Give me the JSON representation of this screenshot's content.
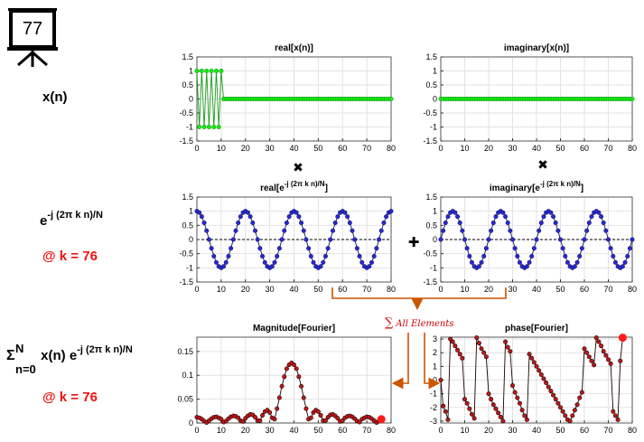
{
  "board": {
    "value": "77",
    "icon": "presentation-board-icon"
  },
  "rows": {
    "signal": {
      "label": "x(n)"
    },
    "kernel": {
      "base": "e",
      "exponent": "-j (2π k n)/N",
      "k_label": "@ k = 76"
    },
    "sum": {
      "sigma": "Σ",
      "upper": "N",
      "lower": "n=0",
      "body": " x(n) e",
      "exponent": "-j (2π k n)/N",
      "k_label": "@ k = 76"
    }
  },
  "operators": {
    "multiply": "✖",
    "add": "✚",
    "sum_label": "All Elements",
    "sum_symbol": "∑"
  },
  "colors": {
    "accent_red": "#ee1111",
    "green": "#1a9a1a",
    "navy": "#10106e",
    "darkred": "#8b0000",
    "orange": "#cc5500"
  },
  "chart_data": [
    {
      "id": "real_x",
      "type": "line",
      "title": "real[x(n)]",
      "x": [
        0,
        1,
        2,
        3,
        4,
        5,
        6,
        7,
        8,
        9,
        10,
        11,
        12,
        13,
        14,
        15,
        16,
        17,
        18,
        19,
        20,
        21,
        22,
        23,
        24,
        25,
        26,
        27,
        28,
        29,
        30,
        31,
        32,
        33,
        34,
        35,
        36,
        37,
        38,
        39,
        40,
        41,
        42,
        43,
        44,
        45,
        46,
        47,
        48,
        49,
        50,
        51,
        52,
        53,
        54,
        55,
        56,
        57,
        58,
        59,
        60,
        61,
        62,
        63,
        64,
        65,
        66,
        67,
        68,
        69,
        70,
        71,
        72,
        73,
        74,
        75,
        76,
        77,
        78,
        79,
        80
      ],
      "values": [
        1,
        -1,
        1,
        -1,
        1,
        -1,
        1,
        -1,
        1,
        -1,
        1,
        0,
        0,
        0,
        0,
        0,
        0,
        0,
        0,
        0,
        0,
        0,
        0,
        0,
        0,
        0,
        0,
        0,
        0,
        0,
        0,
        0,
        0,
        0,
        0,
        0,
        0,
        0,
        0,
        0,
        0,
        0,
        0,
        0,
        0,
        0,
        0,
        0,
        0,
        0,
        0,
        0,
        0,
        0,
        0,
        0,
        0,
        0,
        0,
        0,
        0,
        0,
        0,
        0,
        0,
        0,
        0,
        0,
        0,
        0,
        0,
        0,
        0,
        0,
        0,
        0,
        0,
        0,
        0,
        0,
        0
      ],
      "xlim": [
        0,
        80
      ],
      "ylim": [
        -1.5,
        1.5
      ],
      "xticks": [
        0,
        10,
        20,
        30,
        40,
        50,
        60,
        70,
        80
      ],
      "yticks": [
        -1.5,
        -1,
        -0.5,
        0,
        0.5,
        1,
        1.5
      ],
      "ytick_labels": [
        "-1.5",
        "-1",
        "-0.5",
        "0",
        "0.5",
        "1",
        "1.5"
      ],
      "grid": true,
      "dashed_zero": false,
      "color": "#1a9a1a",
      "marker": "#11ee11"
    },
    {
      "id": "imag_x",
      "type": "line",
      "title": "imaginary[x(n)]",
      "x": [
        0,
        1,
        2,
        3,
        4,
        5,
        6,
        7,
        8,
        9,
        10,
        11,
        12,
        13,
        14,
        15,
        16,
        17,
        18,
        19,
        20,
        21,
        22,
        23,
        24,
        25,
        26,
        27,
        28,
        29,
        30,
        31,
        32,
        33,
        34,
        35,
        36,
        37,
        38,
        39,
        40,
        41,
        42,
        43,
        44,
        45,
        46,
        47,
        48,
        49,
        50,
        51,
        52,
        53,
        54,
        55,
        56,
        57,
        58,
        59,
        60,
        61,
        62,
        63,
        64,
        65,
        66,
        67,
        68,
        69,
        70,
        71,
        72,
        73,
        74,
        75,
        76,
        77,
        78,
        79,
        80
      ],
      "values": [
        0,
        0,
        0,
        0,
        0,
        0,
        0,
        0,
        0,
        0,
        0,
        0,
        0,
        0,
        0,
        0,
        0,
        0,
        0,
        0,
        0,
        0,
        0,
        0,
        0,
        0,
        0,
        0,
        0,
        0,
        0,
        0,
        0,
        0,
        0,
        0,
        0,
        0,
        0,
        0,
        0,
        0,
        0,
        0,
        0,
        0,
        0,
        0,
        0,
        0,
        0,
        0,
        0,
        0,
        0,
        0,
        0,
        0,
        0,
        0,
        0,
        0,
        0,
        0,
        0,
        0,
        0,
        0,
        0,
        0,
        0,
        0,
        0,
        0,
        0,
        0,
        0,
        0,
        0,
        0,
        0
      ],
      "xlim": [
        0,
        80
      ],
      "ylim": [
        -1.5,
        1.5
      ],
      "xticks": [
        0,
        10,
        20,
        30,
        40,
        50,
        60,
        70,
        80
      ],
      "yticks": [
        -1.5,
        -1,
        -0.5,
        0,
        0.5,
        1,
        1.5
      ],
      "ytick_labels": [
        "-1.5",
        "-1",
        "-0.5",
        "0",
        "0.5",
        "1",
        "1.5"
      ],
      "grid": true,
      "dashed_zero": false,
      "color": "#1a9a1a",
      "marker": "#11ee11"
    },
    {
      "id": "real_kernel",
      "type": "line",
      "title": "real[e",
      "title_sup": "-j (2π k n)/N",
      "title_end": "]",
      "x": [
        0,
        1,
        2,
        3,
        4,
        5,
        6,
        7,
        8,
        9,
        10,
        11,
        12,
        13,
        14,
        15,
        16,
        17,
        18,
        19,
        20,
        21,
        22,
        23,
        24,
        25,
        26,
        27,
        28,
        29,
        30,
        31,
        32,
        33,
        34,
        35,
        36,
        37,
        38,
        39,
        40,
        41,
        42,
        43,
        44,
        45,
        46,
        47,
        48,
        49,
        50,
        51,
        52,
        53,
        54,
        55,
        56,
        57,
        58,
        59,
        60,
        61,
        62,
        63,
        64,
        65,
        66,
        67,
        68,
        69,
        70,
        71,
        72,
        73,
        74,
        75,
        76,
        77,
        78,
        79,
        80
      ],
      "values": [
        1,
        0.95,
        0.81,
        0.59,
        0.31,
        0,
        -0.31,
        -0.59,
        -0.81,
        -0.95,
        -1,
        -0.95,
        -0.81,
        -0.59,
        -0.31,
        0,
        0.31,
        0.59,
        0.81,
        0.95,
        1,
        0.95,
        0.81,
        0.59,
        0.31,
        0,
        -0.31,
        -0.59,
        -0.81,
        -0.95,
        -1,
        -0.95,
        -0.81,
        -0.59,
        -0.31,
        0,
        0.31,
        0.59,
        0.81,
        0.95,
        1,
        0.95,
        0.81,
        0.59,
        0.31,
        0,
        -0.31,
        -0.59,
        -0.81,
        -0.95,
        -1,
        -0.95,
        -0.81,
        -0.59,
        -0.31,
        0,
        0.31,
        0.59,
        0.81,
        0.95,
        1,
        0.95,
        0.81,
        0.59,
        0.31,
        0,
        -0.31,
        -0.59,
        -0.81,
        -0.95,
        -1,
        -0.95,
        -0.81,
        -0.59,
        -0.31,
        0,
        0.31,
        0.59,
        0.81,
        0.95,
        1
      ],
      "xlim": [
        0,
        80
      ],
      "ylim": [
        -1.5,
        1.5
      ],
      "xticks": [
        0,
        10,
        20,
        30,
        40,
        50,
        60,
        70,
        80
      ],
      "yticks": [
        -1.5,
        -1,
        -0.5,
        0,
        0.5,
        1,
        1.5
      ],
      "ytick_labels": [
        "-1.5",
        "-1",
        "-0.5",
        "0",
        "0.5",
        "1",
        "1.5"
      ],
      "grid": true,
      "dashed_zero": true,
      "color": "#10106e",
      "marker": "#2a2ad0"
    },
    {
      "id": "imag_kernel",
      "type": "line",
      "title": "imaginary[e",
      "title_sup": "-j (2π k n)/N",
      "title_end": "]",
      "x": [
        0,
        1,
        2,
        3,
        4,
        5,
        6,
        7,
        8,
        9,
        10,
        11,
        12,
        13,
        14,
        15,
        16,
        17,
        18,
        19,
        20,
        21,
        22,
        23,
        24,
        25,
        26,
        27,
        28,
        29,
        30,
        31,
        32,
        33,
        34,
        35,
        36,
        37,
        38,
        39,
        40,
        41,
        42,
        43,
        44,
        45,
        46,
        47,
        48,
        49,
        50,
        51,
        52,
        53,
        54,
        55,
        56,
        57,
        58,
        59,
        60,
        61,
        62,
        63,
        64,
        65,
        66,
        67,
        68,
        69,
        70,
        71,
        72,
        73,
        74,
        75,
        76,
        77,
        78,
        79,
        80
      ],
      "values": [
        0,
        0.31,
        0.59,
        0.81,
        0.95,
        1,
        0.95,
        0.81,
        0.59,
        0.31,
        0,
        -0.31,
        -0.59,
        -0.81,
        -0.95,
        -1,
        -0.95,
        -0.81,
        -0.59,
        -0.31,
        0,
        0.31,
        0.59,
        0.81,
        0.95,
        1,
        0.95,
        0.81,
        0.59,
        0.31,
        0,
        -0.31,
        -0.59,
        -0.81,
        -0.95,
        -1,
        -0.95,
        -0.81,
        -0.59,
        -0.31,
        0,
        0.31,
        0.59,
        0.81,
        0.95,
        1,
        0.95,
        0.81,
        0.59,
        0.31,
        0,
        -0.31,
        -0.59,
        -0.81,
        -0.95,
        -1,
        -0.95,
        -0.81,
        -0.59,
        -0.31,
        0,
        0.31,
        0.59,
        0.81,
        0.95,
        1,
        0.95,
        0.81,
        0.59,
        0.31,
        0,
        -0.31,
        -0.59,
        -0.81,
        -0.95,
        -1,
        -0.95,
        -0.81,
        -0.59,
        -0.31,
        0
      ],
      "xlim": [
        0,
        80
      ],
      "ylim": [
        -1.5,
        1.5
      ],
      "xticks": [
        0,
        10,
        20,
        30,
        40,
        50,
        60,
        70,
        80
      ],
      "yticks": [
        -1.5,
        -1,
        -0.5,
        0,
        0.5,
        1,
        1.5
      ],
      "ytick_labels": [
        "-1.5",
        "-1",
        "-0.5",
        "0",
        "0.5",
        "1",
        "1.5"
      ],
      "grid": true,
      "dashed_zero": true,
      "color": "#10106e",
      "marker": "#2a2ad0"
    },
    {
      "id": "magnitude",
      "type": "line",
      "title": "Magnitude[Fourier]",
      "x": [
        0,
        1,
        2,
        3,
        4,
        5,
        6,
        7,
        8,
        9,
        10,
        11,
        12,
        13,
        14,
        15,
        16,
        17,
        18,
        19,
        20,
        21,
        22,
        23,
        24,
        25,
        26,
        27,
        28,
        29,
        30,
        31,
        32,
        33,
        34,
        35,
        36,
        37,
        38,
        39,
        40,
        41,
        42,
        43,
        44,
        45,
        46,
        47,
        48,
        49,
        50,
        51,
        52,
        53,
        54,
        55,
        56,
        57,
        58,
        59,
        60,
        61,
        62,
        63,
        64,
        65,
        66,
        67,
        68,
        69,
        70,
        71,
        72,
        73,
        74,
        75,
        76
      ],
      "values": [
        0.012,
        0.011,
        0.008,
        0.004,
        0.001,
        0.005,
        0.009,
        0.012,
        0.013,
        0.011,
        0.008,
        0.002,
        0.004,
        0.009,
        0.013,
        0.015,
        0.014,
        0.011,
        0.005,
        0.003,
        0.01,
        0.015,
        0.018,
        0.017,
        0.012,
        0.005,
        0.005,
        0.016,
        0.024,
        0.027,
        0.022,
        0.011,
        0.008,
        0.03,
        0.053,
        0.077,
        0.097,
        0.114,
        0.122,
        0.126,
        0.122,
        0.114,
        0.097,
        0.077,
        0.053,
        0.03,
        0.008,
        0.011,
        0.022,
        0.027,
        0.024,
        0.016,
        0.005,
        0.005,
        0.012,
        0.017,
        0.018,
        0.015,
        0.01,
        0.003,
        0.005,
        0.011,
        0.014,
        0.015,
        0.013,
        0.009,
        0.004,
        0.002,
        0.008,
        0.011,
        0.013,
        0.012,
        0.009,
        0.005,
        0.001,
        0.004,
        0.008
      ],
      "highlight_index": 76,
      "xlim": [
        0,
        80
      ],
      "ylim": [
        0,
        0.18
      ],
      "xticks": [
        0,
        10,
        20,
        30,
        40,
        50,
        60,
        70,
        80
      ],
      "yticks": [
        0,
        0.05,
        0.1,
        0.15
      ],
      "ytick_labels": [
        "0",
        "0.05",
        "0.1",
        "0.15"
      ],
      "grid": true,
      "dashed_zero": false,
      "color": "#1a0000",
      "marker": "#c01818",
      "highlight": "#ff1a1a"
    },
    {
      "id": "phase",
      "type": "line",
      "title": "phase[Fourier]",
      "x": [
        0,
        1,
        2,
        3,
        4,
        5,
        6,
        7,
        8,
        9,
        10,
        11,
        12,
        13,
        14,
        15,
        16,
        17,
        18,
        19,
        20,
        21,
        22,
        23,
        24,
        25,
        26,
        27,
        28,
        29,
        30,
        31,
        32,
        33,
        34,
        35,
        36,
        37,
        38,
        39,
        40,
        41,
        42,
        43,
        44,
        45,
        46,
        47,
        48,
        49,
        50,
        51,
        52,
        53,
        54,
        55,
        56,
        57,
        58,
        59,
        60,
        61,
        62,
        63,
        64,
        65,
        66,
        67,
        68,
        69,
        70,
        71,
        72,
        73,
        74,
        75,
        76
      ],
      "values": [
        0,
        -1.9,
        -2.3,
        -2.9,
        3.0,
        2.8,
        2.5,
        2.2,
        1.9,
        1.6,
        -1.4,
        -1.7,
        -2.1,
        -2.5,
        -2.8,
        3.1,
        2.7,
        2.3,
        2.0,
        1.7,
        -1.0,
        -1.4,
        -1.8,
        -2.1,
        -2.4,
        -2.7,
        -3.0,
        2.8,
        2.4,
        2.1,
        -0.4,
        -0.9,
        -1.3,
        -1.7,
        -2.2,
        -2.6,
        -2.9,
        1.9,
        1.6,
        1.3,
        1.0,
        0.7,
        0.4,
        0.1,
        -0.2,
        -0.5,
        -0.8,
        -1.1,
        -1.4,
        -1.7,
        -2.0,
        -2.3,
        -2.6,
        -2.9,
        -3.0,
        -2.6,
        -2.2,
        -1.8,
        -1.3,
        -0.9,
        2.3,
        2.0,
        1.7,
        1.4,
        1.1,
        3.1,
        2.8,
        2.5,
        2.1,
        1.8,
        1.5,
        1.2,
        -2.3,
        -2.6,
        -2.9,
        1.4,
        3.1
      ],
      "highlight_index": 76,
      "xlim": [
        0,
        80
      ],
      "ylim": [
        -3.14,
        3.14
      ],
      "xticks": [
        0,
        10,
        20,
        30,
        40,
        50,
        60,
        70,
        80
      ],
      "yticks": [
        -3,
        -2,
        -1,
        0,
        1,
        2,
        3
      ],
      "ytick_labels": [
        "-3",
        "-2",
        "-1",
        "0",
        "1",
        "2",
        "3"
      ],
      "grid": true,
      "dashed_zero": false,
      "color": "#1a0000",
      "marker": "#c01818",
      "highlight": "#ff1a1a"
    }
  ]
}
